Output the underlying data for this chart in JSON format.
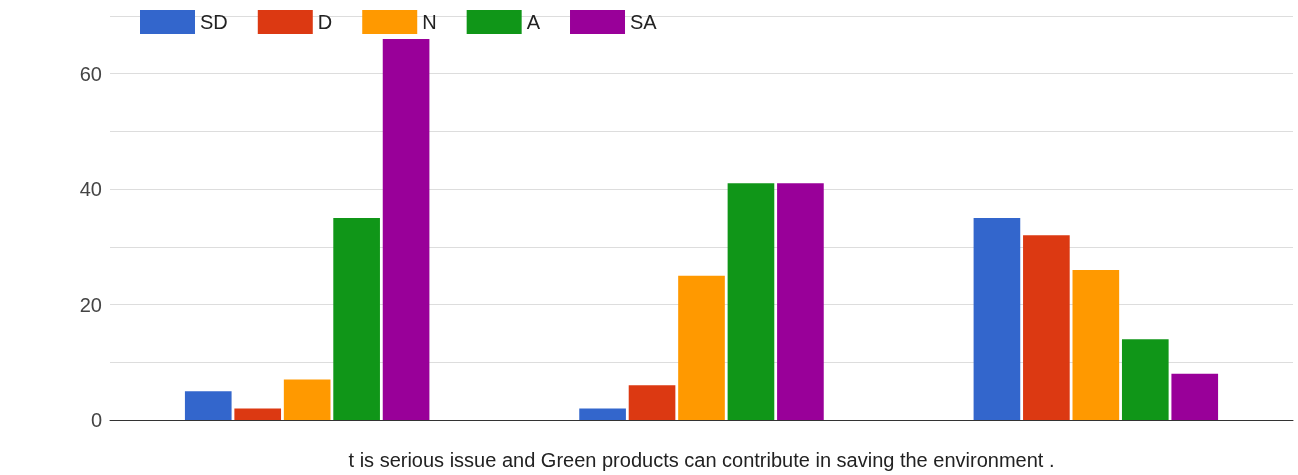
{
  "chart_data": {
    "type": "bar",
    "xlabel": "t is serious issue and Green products can contribute in saving the environment .",
    "categories": [
      null,
      null,
      null
    ],
    "series": [
      {
        "name": "SD",
        "color": "#3366cc",
        "values": [
          5,
          2,
          35
        ]
      },
      {
        "name": "D",
        "color": "#dc3912",
        "values": [
          2,
          6,
          32
        ]
      },
      {
        "name": "N",
        "color": "#ff9900",
        "values": [
          7,
          25,
          26
        ]
      },
      {
        "name": "A",
        "color": "#109618",
        "values": [
          35,
          41,
          14
        ]
      },
      {
        "name": "SA",
        "color": "#990099",
        "values": [
          66,
          41,
          8
        ]
      }
    ],
    "ylim": [
      0,
      70
    ],
    "yticks": [
      0,
      {
        "value": 10,
        "label": null
      },
      20,
      {
        "value": 30,
        "label": null
      },
      40,
      {
        "value": 50,
        "label": null
      },
      60,
      {
        "value": 70,
        "label": null
      }
    ],
    "grid": "y",
    "legend": "top left"
  }
}
